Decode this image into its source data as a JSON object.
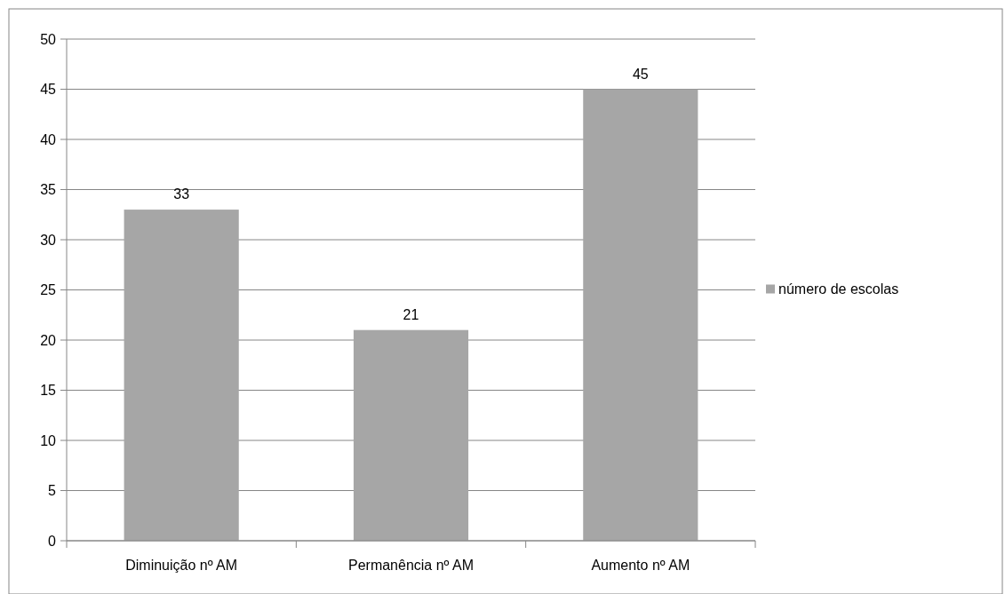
{
  "chart_data": {
    "type": "bar",
    "categories": [
      "Diminuição nº AM",
      "Permanência nº AM",
      "Aumento nº AM"
    ],
    "series": [
      {
        "name": "número de escolas",
        "color": "#a6a6a6",
        "values": [
          33,
          21,
          45
        ]
      }
    ],
    "ylim": [
      0,
      50
    ],
    "yticks": [
      0,
      5,
      10,
      15,
      20,
      25,
      30,
      35,
      40,
      45,
      50
    ],
    "grid": "y",
    "legend": "right",
    "data_labels": true
  }
}
